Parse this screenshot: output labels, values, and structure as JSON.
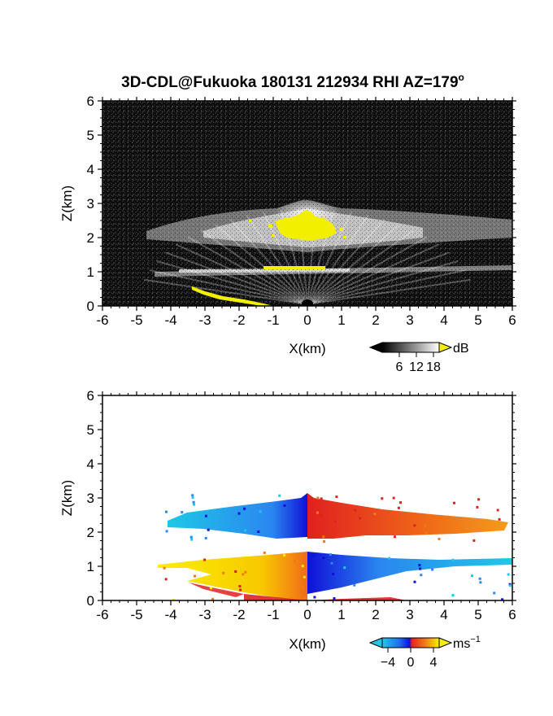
{
  "title": "3D-CDL@Fukuoka 180131 212934 RHI AZ=179",
  "title_superscript": "o",
  "chart_data": [
    {
      "type": "heatmap",
      "name": "reflectivity",
      "xlabel": "X(km)",
      "ylabel": "Z(km)",
      "xlim": [
        -6,
        6
      ],
      "ylim": [
        0,
        6
      ],
      "x_ticks": [
        "-6",
        "-5",
        "-4",
        "-3",
        "-2",
        "-1",
        "0",
        "1",
        "2",
        "3",
        "4",
        "5",
        "6"
      ],
      "y_ticks": [
        "0",
        "1",
        "2",
        "3",
        "4",
        "5",
        "6"
      ],
      "background": "#0a0a0a",
      "features": [
        {
          "kind": "cloud_layer",
          "z_km": 2.2,
          "x_range_km": [
            -5.0,
            6.0
          ],
          "intensity_db": 12
        },
        {
          "kind": "cloud_top",
          "z_km": 3.0,
          "x_km": 0.0
        },
        {
          "kind": "saturated_core",
          "z_range_km": [
            1.9,
            2.7
          ],
          "x_range_km": [
            -1.0,
            1.0
          ],
          "intensity_db": 18
        },
        {
          "kind": "lower_layer",
          "z_km": 1.1,
          "x_range_km": [
            -3.7,
            6.0
          ],
          "intensity_db": 10
        },
        {
          "kind": "ground_clutter",
          "z_range_km": [
            0.0,
            0.5
          ],
          "x_range_km": [
            -3.4,
            -0.5
          ],
          "intensity_db": 18
        }
      ],
      "colorbar": {
        "unit": "dB",
        "ticks": [
          "6",
          "12",
          "18"
        ],
        "range": [
          0,
          20
        ],
        "colors": [
          "#000000",
          "#ffffff",
          "#f2ef00"
        ]
      }
    },
    {
      "type": "heatmap",
      "name": "doppler_velocity",
      "xlabel": "X(km)",
      "ylabel": "Z(km)",
      "xlim": [
        -6,
        6
      ],
      "ylim": [
        0,
        6
      ],
      "x_ticks": [
        "-6",
        "-5",
        "-4",
        "-3",
        "-2",
        "-1",
        "0",
        "1",
        "2",
        "3",
        "4",
        "5",
        "6"
      ],
      "y_ticks": [
        "0",
        "1",
        "2",
        "3",
        "4",
        "5",
        "6"
      ],
      "background": "#ffffff",
      "features": [
        {
          "kind": "upper_layer_left",
          "z_range_km": [
            2.0,
            2.9
          ],
          "x_range_km": [
            -5.0,
            0.0
          ],
          "velocity_ms": -3
        },
        {
          "kind": "upper_layer_right",
          "z_range_km": [
            2.0,
            2.9
          ],
          "x_range_km": [
            0.0,
            6.0
          ],
          "velocity_ms": 3
        },
        {
          "kind": "lower_layer_left",
          "z_range_km": [
            0.0,
            1.2
          ],
          "x_range_km": [
            -4.3,
            0.0
          ],
          "velocity_ms": 4
        },
        {
          "kind": "lower_layer_right",
          "z_range_km": [
            0.6,
            1.2
          ],
          "x_range_km": [
            0.0,
            6.0
          ],
          "velocity_ms": -4
        }
      ],
      "colorbar": {
        "unit": "ms",
        "unit_superscript": "−1",
        "ticks": [
          "−4",
          "0",
          "4"
        ],
        "range": [
          -5,
          5
        ],
        "colors": [
          "#1ec8e6",
          "#1e6ef0",
          "#1010d8",
          "#e82020",
          "#f07a18",
          "#f8f000"
        ]
      }
    }
  ]
}
